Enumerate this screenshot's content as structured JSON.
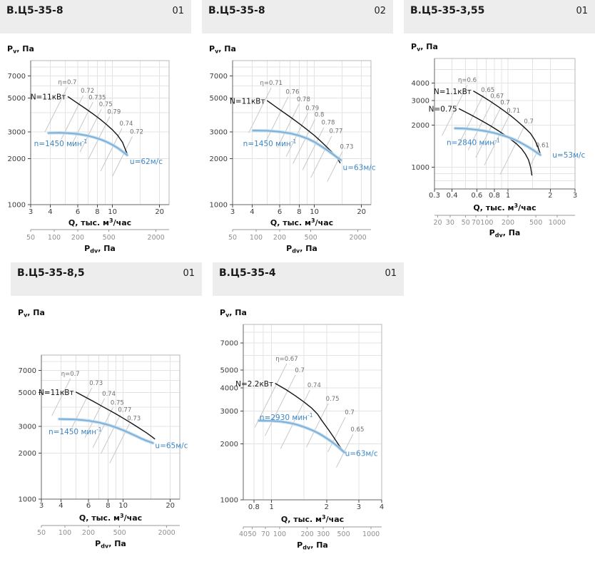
{
  "axis_labels": {
    "y_main": "P",
    "y_sub": "v",
    "y_rest": ", Па",
    "x_main": "Q, тыс. м",
    "x_sup": "3",
    "x_rest": "/час",
    "x2_main": "P",
    "x2_sub": "dv",
    "x2_rest": ", Па"
  },
  "colors": {
    "header_bg": "#ededed",
    "fan_outer": "#b7d6ec",
    "fan_core": "#70a9d4",
    "power": "#151515",
    "eta_line": "#c8c8c8",
    "eta_text": "#6f6f6f",
    "blue_text": "#3c86c4",
    "grid": "#e3e3e3",
    "border_light": "#b7b7b7",
    "axis_dark": "#666666",
    "tick_text": "#3c3c3c",
    "tick2_text": "#8f8f8f"
  },
  "chart_data": [
    {
      "type": "line",
      "title": "В.Ц5-35-8",
      "code": "01",
      "xlabel": "Q, тыс. м3/час",
      "ylabel": "Pv, Па",
      "x2label": "Pdv, Па",
      "q_range": [
        3,
        23
      ],
      "p_range": [
        1000,
        8800
      ],
      "q_ticks": [
        3,
        4,
        6,
        8,
        10,
        20
      ],
      "p_ticks": [
        1000,
        2000,
        3000,
        5000,
        7000
      ],
      "grid_q": [
        4,
        5,
        6,
        7,
        8,
        9,
        10,
        15,
        20
      ],
      "grid_p": [
        2000,
        3000,
        4000,
        5000,
        6000,
        7000,
        8000
      ],
      "pdv_range": [
        50,
        2941
      ],
      "pdv_ticks": [
        50,
        100,
        200,
        500,
        2000
      ],
      "fan": [
        [
          3.9,
          2950
        ],
        [
          4.6,
          2960
        ],
        [
          5.2,
          2945
        ],
        [
          6,
          2905
        ],
        [
          6.8,
          2845
        ],
        [
          7.6,
          2765
        ],
        [
          8.4,
          2675
        ],
        [
          9.2,
          2575
        ],
        [
          10,
          2465
        ],
        [
          10.8,
          2350
        ],
        [
          11.6,
          2230
        ],
        [
          12.4,
          2110
        ]
      ],
      "powers": [
        {
          "label": "N=11кВт",
          "points": [
            [
              5.2,
              5100
            ],
            [
              6,
              4620
            ],
            [
              6.8,
              4230
            ],
            [
              7.6,
              3900
            ],
            [
              8.4,
              3610
            ],
            [
              9.2,
              3340
            ],
            [
              10,
              3090
            ],
            [
              10.8,
              2840
            ],
            [
              11.6,
              2560
            ],
            [
              12.4,
              2150
            ]
          ]
        }
      ],
      "n_label": {
        "main": "n=1450 мин",
        "sup": "-1",
        "at": [
          3.15,
          2420
        ]
      },
      "u_label": {
        "text": "u=62м/с",
        "at": [
          12.9,
          1850
        ]
      },
      "eta": [
        {
          "label": "η=0.7",
          "qt": 5.15,
          "pt": 5900,
          "qb": 3.7
        },
        {
          "label": "0.72",
          "qt": 6.5,
          "pt": 5200,
          "qb": 4.7
        },
        {
          "label": "0.735",
          "qt": 7.5,
          "pt": 4700,
          "qb": 5.4
        },
        {
          "label": "0.75",
          "qt": 8.5,
          "pt": 4230,
          "qb": 6.2
        },
        {
          "label": "0.79",
          "qt": 9.6,
          "pt": 3780,
          "qb": 7.0
        },
        {
          "label": "0.74",
          "qt": 11.5,
          "pt": 3160,
          "qb": 8.4
        },
        {
          "label": "0.72",
          "qt": 13.4,
          "pt": 2800,
          "qb": 10.0
        }
      ]
    },
    {
      "type": "line",
      "title": "В.Ц5-35-8",
      "code": "02",
      "xlabel": "Q, тыс. м3/час",
      "ylabel": "Pv, Па",
      "x2label": "Pdv, Па",
      "q_range": [
        3,
        23
      ],
      "p_range": [
        1000,
        8800
      ],
      "q_ticks": [
        3,
        4,
        6,
        8,
        10,
        20
      ],
      "p_ticks": [
        1000,
        2000,
        3000,
        5000,
        7000
      ],
      "grid_q": [
        4,
        5,
        6,
        7,
        8,
        9,
        10,
        15,
        20
      ],
      "grid_p": [
        2000,
        3000,
        4000,
        5000,
        6000,
        7000,
        8000
      ],
      "pdv_range": [
        50,
        2941
      ],
      "pdv_ticks": [
        50,
        100,
        200,
        500,
        2000
      ],
      "fan": [
        [
          4.05,
          3060
        ],
        [
          5,
          3050
        ],
        [
          6,
          3005
        ],
        [
          7,
          2935
        ],
        [
          8,
          2835
        ],
        [
          9,
          2715
        ],
        [
          10,
          2575
        ],
        [
          11,
          2425
        ],
        [
          12,
          2285
        ],
        [
          13,
          2155
        ],
        [
          14,
          2040
        ],
        [
          14.8,
          1960
        ]
      ],
      "powers": [
        {
          "label": "N=11кВт",
          "points": [
            [
              5,
              4800
            ],
            [
              6,
              4200
            ],
            [
              7,
              3760
            ],
            [
              8,
              3400
            ],
            [
              9,
              3100
            ],
            [
              10,
              2840
            ],
            [
              11,
              2600
            ],
            [
              12,
              2390
            ],
            [
              13,
              2200
            ],
            [
              14,
              2020
            ],
            [
              14.6,
              1880
            ]
          ]
        }
      ],
      "n_label": {
        "main": "n=1450 мин",
        "sup": "-1",
        "at": [
          3.5,
          2420
        ]
      },
      "u_label": {
        "text": "u=63м/с",
        "at": [
          15.2,
          1690
        ]
      },
      "eta": [
        {
          "label": "η=0.71",
          "qt": 5.3,
          "pt": 5850,
          "qb": 3.8
        },
        {
          "label": "0.76",
          "qt": 6.8,
          "pt": 5100,
          "qb": 4.9
        },
        {
          "label": "0.78",
          "qt": 8.0,
          "pt": 4570,
          "qb": 5.8
        },
        {
          "label": "0.79",
          "qt": 9.1,
          "pt": 3990,
          "qb": 6.6
        },
        {
          "label": "0.8",
          "qt": 10.1,
          "pt": 3620,
          "qb": 7.3
        },
        {
          "label": "0.78",
          "qt": 11.5,
          "pt": 3210,
          "qb": 8.4
        },
        {
          "label": "0.77",
          "qt": 12.9,
          "pt": 2820,
          "qb": 9.5
        },
        {
          "label": "0.73",
          "qt": 15.1,
          "pt": 2230,
          "qb": 12.1
        }
      ]
    },
    {
      "type": "line",
      "title": "В.Ц5-35-3,55",
      "code": "01",
      "xlabel": "Q, тыс. м3/час",
      "ylabel": "Pv, Па",
      "x2label": "Pdv, Па",
      "q_range": [
        0.3,
        3
      ],
      "p_range": [
        700,
        6000
      ],
      "q_ticks": [
        0.3,
        0.4,
        0.6,
        0.8,
        1,
        2,
        3
      ],
      "p_ticks": [
        1000,
        2000,
        3000,
        4000
      ],
      "grid_q": [
        0.4,
        0.5,
        0.6,
        0.7,
        0.8,
        0.9,
        1,
        1.5,
        2
      ],
      "grid_p": [
        800,
        900,
        1000,
        2000,
        3000,
        4000,
        5000
      ],
      "pdv_range": [
        18,
        1800
      ],
      "pdv_ticks": [
        20,
        30,
        50,
        70,
        100,
        200,
        500,
        1000
      ],
      "fan": [
        [
          0.42,
          1900
        ],
        [
          0.5,
          1890
        ],
        [
          0.6,
          1855
        ],
        [
          0.7,
          1810
        ],
        [
          0.8,
          1760
        ],
        [
          0.9,
          1700
        ],
        [
          1.0,
          1645
        ],
        [
          1.1,
          1585
        ],
        [
          1.2,
          1520
        ],
        [
          1.3,
          1455
        ],
        [
          1.4,
          1395
        ],
        [
          1.5,
          1335
        ],
        [
          1.6,
          1275
        ],
        [
          1.7,
          1225
        ]
      ],
      "powers": [
        {
          "label": "N=1.1кВт",
          "points": [
            [
              0.57,
              3500
            ],
            [
              0.65,
              3240
            ],
            [
              0.75,
              2960
            ],
            [
              0.85,
              2720
            ],
            [
              0.95,
              2510
            ],
            [
              1.05,
              2330
            ],
            [
              1.15,
              2160
            ],
            [
              1.25,
              2010
            ],
            [
              1.35,
              1870
            ],
            [
              1.45,
              1740
            ],
            [
              1.55,
              1570
            ],
            [
              1.63,
              1410
            ],
            [
              1.7,
              1240
            ]
          ]
        },
        {
          "label": "N=0.75",
          "points": [
            [
              0.45,
              2620
            ],
            [
              0.55,
              2360
            ],
            [
              0.65,
              2150
            ],
            [
              0.75,
              1980
            ],
            [
              0.85,
              1830
            ],
            [
              0.95,
              1700
            ],
            [
              1.05,
              1580
            ],
            [
              1.15,
              1470
            ],
            [
              1.25,
              1355
            ],
            [
              1.33,
              1245
            ],
            [
              1.4,
              1130
            ],
            [
              1.45,
              1000
            ],
            [
              1.48,
              880
            ]
          ]
        }
      ],
      "n_label": {
        "main": "n=2840 мин",
        "sup": "-1",
        "at": [
          0.366,
          1445
        ]
      },
      "u_label": {
        "text": "u=53м/с",
        "at": [
          2.07,
          1170
        ]
      },
      "eta": [
        {
          "label": "η=0.6",
          "qt": 0.514,
          "pt": 3880,
          "qb": 0.34
        },
        {
          "label": "0.65",
          "qt": 0.67,
          "pt": 3300,
          "qb": 0.44
        },
        {
          "label": "0.67",
          "qt": 0.78,
          "pt": 2990,
          "qb": 0.52
        },
        {
          "label": "0.7",
          "qt": 0.89,
          "pt": 2680,
          "qb": 0.59
        },
        {
          "label": "0.71",
          "qt": 1.02,
          "pt": 2340,
          "qb": 0.68
        },
        {
          "label": "0.7",
          "qt": 1.31,
          "pt": 1970,
          "qb": 0.88
        },
        {
          "label": "0.61",
          "qt": 1.64,
          "pt": 1330,
          "qb": 1.45
        }
      ]
    },
    {
      "type": "line",
      "title": "В.Ц5-35-8,5",
      "code": "01",
      "xlabel": "Q, тыс. м3/час",
      "ylabel": "Pv, Па",
      "x2label": "Pdv, Па",
      "q_range": [
        3,
        23
      ],
      "p_range": [
        1000,
        8800
      ],
      "q_ticks": [
        3,
        4,
        6,
        8,
        10,
        20
      ],
      "p_ticks": [
        1000,
        2000,
        3000,
        5000,
        7000
      ],
      "grid_q": [
        4,
        5,
        6,
        7,
        8,
        9,
        10,
        15,
        20
      ],
      "grid_p": [
        2000,
        3000,
        4000,
        5000,
        6000,
        7000,
        8000
      ],
      "pdv_range": [
        50,
        2941
      ],
      "pdv_ticks": [
        50,
        100,
        200,
        500,
        2000
      ],
      "fan": [
        [
          3.9,
          3350
        ],
        [
          5,
          3330
        ],
        [
          6,
          3270
        ],
        [
          7,
          3180
        ],
        [
          8,
          3070
        ],
        [
          9,
          2950
        ],
        [
          10,
          2830
        ],
        [
          11,
          2710
        ],
        [
          12,
          2600
        ],
        [
          13,
          2500
        ],
        [
          14,
          2420
        ],
        [
          15,
          2360
        ],
        [
          15.5,
          2330
        ]
      ],
      "powers": [
        {
          "label": "N=11кВт",
          "points": [
            [
              5,
              5030
            ],
            [
              6.3,
              4430
            ],
            [
              7.6,
              3980
            ],
            [
              8.9,
              3640
            ],
            [
              10.2,
              3350
            ],
            [
              11.5,
              3110
            ],
            [
              12.8,
              2900
            ],
            [
              14.1,
              2720
            ],
            [
              15.3,
              2560
            ],
            [
              15.9,
              2480
            ]
          ]
        }
      ],
      "n_label": {
        "main": "n=1450 мин",
        "sup": "-1",
        "at": [
          3.33,
          2670
        ]
      },
      "u_label": {
        "text": "u=65м/с",
        "at": [
          16.0,
          2160
        ]
      },
      "eta": [
        {
          "label": "η=0.7",
          "qt": 4.6,
          "pt": 6170,
          "qb": 3.5
        },
        {
          "label": "0.73",
          "qt": 6.3,
          "pt": 5370,
          "qb": 4.7
        },
        {
          "label": "0.74",
          "qt": 7.6,
          "pt": 4570,
          "qb": 5.7
        },
        {
          "label": "0.75",
          "qt": 8.6,
          "pt": 3990,
          "qb": 6.4
        },
        {
          "label": "0.77",
          "qt": 9.6,
          "pt": 3580,
          "qb": 7.2
        },
        {
          "label": "0.73",
          "qt": 11.0,
          "pt": 3140,
          "qb": 8.2
        }
      ]
    },
    {
      "type": "line",
      "title": "В.Ц5-35-4",
      "code": "01",
      "xlabel": "Q, тыс. м3/час",
      "ylabel": "Pv, Па",
      "x2label": "Pdv, Па",
      "q_range": [
        0.7,
        4
      ],
      "p_range": [
        1000,
        8800
      ],
      "q_ticks": [
        0.8,
        1,
        2,
        3,
        4
      ],
      "p_ticks": [
        1000,
        2000,
        3000,
        4000,
        5000,
        7000
      ],
      "grid_q": [
        0.8,
        0.9,
        1,
        1.5,
        2,
        3
      ],
      "grid_p": [
        2000,
        3000,
        4000,
        5000,
        6000,
        7000,
        8000
      ],
      "pdv_range": [
        40,
        1306
      ],
      "pdv_ticks": [
        40,
        50,
        70,
        100,
        200,
        300,
        500,
        1000
      ],
      "fan": [
        [
          0.85,
          2670
        ],
        [
          1.0,
          2660
        ],
        [
          1.1,
          2645
        ],
        [
          1.2,
          2615
        ],
        [
          1.3,
          2575
        ],
        [
          1.4,
          2525
        ],
        [
          1.5,
          2470
        ],
        [
          1.6,
          2410
        ],
        [
          1.7,
          2350
        ],
        [
          1.8,
          2285
        ],
        [
          1.9,
          2215
        ],
        [
          2.0,
          2145
        ],
        [
          2.1,
          2075
        ],
        [
          2.2,
          2005
        ],
        [
          2.3,
          1935
        ],
        [
          2.4,
          1865
        ],
        [
          2.5,
          1800
        ]
      ],
      "powers": [
        {
          "label": "N=2.2кВт",
          "points": [
            [
              1.05,
              4230
            ],
            [
              1.2,
              3920
            ],
            [
              1.35,
              3630
            ],
            [
              1.5,
              3370
            ],
            [
              1.65,
              3130
            ],
            [
              1.78,
              2900
            ],
            [
              1.9,
              2640
            ],
            [
              2.05,
              2380
            ],
            [
              2.2,
              2150
            ],
            [
              2.35,
              1950
            ],
            [
              2.5,
              1800
            ]
          ]
        }
      ],
      "n_label": {
        "main": "n=2930 мин",
        "sup": "-1",
        "at": [
          0.86,
          2690
        ]
      },
      "u_label": {
        "text": "u=63м/с",
        "at": [
          2.52,
          1720
        ]
      },
      "eta": [
        {
          "label": "η=0.67",
          "qt": 1.21,
          "pt": 5410,
          "qb": 0.81
        },
        {
          "label": "0.7",
          "qt": 1.35,
          "pt": 4700,
          "qb": 0.92
        },
        {
          "label": "0.74",
          "qt": 1.62,
          "pt": 3900,
          "qb": 1.12
        },
        {
          "label": "0.75",
          "qt": 2.04,
          "pt": 3300,
          "qb": 1.55
        },
        {
          "label": "0.7",
          "qt": 2.53,
          "pt": 2790,
          "qb": 2.03
        },
        {
          "label": "0.65",
          "qt": 2.79,
          "pt": 2260,
          "qb": 2.26
        }
      ]
    }
  ]
}
